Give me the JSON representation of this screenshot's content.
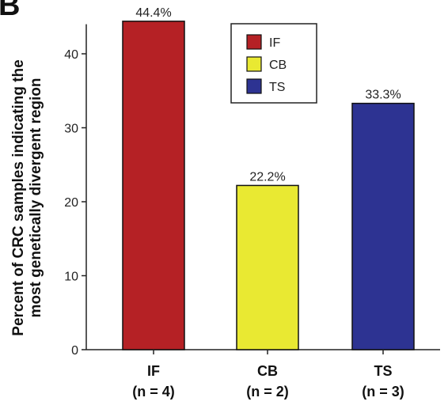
{
  "panel_letter": "B",
  "chart_data": {
    "type": "bar",
    "categories": [
      "IF",
      "CB",
      "TS"
    ],
    "category_sublabels": [
      "(n = 4)",
      "(n = 2)",
      "(n = 3)"
    ],
    "values": [
      44.4,
      22.2,
      33.3
    ],
    "data_labels": [
      "44.4%",
      "22.2%",
      "33.3%"
    ],
    "colors": [
      "#b52125",
      "#e9e932",
      "#2d3392"
    ],
    "title": "",
    "xlabel": "",
    "ylabel_lines": [
      "Percent of CRC samples indicating the",
      "most genetically divergent region"
    ],
    "ylim": [
      0,
      44
    ],
    "yticks": [
      0,
      10,
      20,
      30,
      40
    ],
    "grid": false,
    "legend": {
      "placement": "top-center",
      "entries": [
        {
          "label": "IF",
          "color": "#b52125"
        },
        {
          "label": "CB",
          "color": "#e9e932"
        },
        {
          "label": "TS",
          "color": "#2d3392"
        }
      ]
    }
  }
}
